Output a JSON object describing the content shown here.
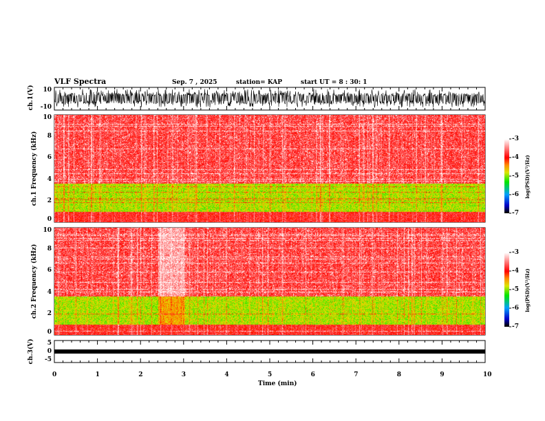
{
  "header": {
    "title": "VLF Spectra",
    "date": "Sep. 7 , 2025",
    "station": "station= KAP",
    "start": "start  UT =  8 : 30: 1"
  },
  "chart_data": [
    {
      "type": "line",
      "name": "ch1 waveform",
      "ylabel": "ch.1(V)",
      "ylim": [
        -10,
        10
      ],
      "yticks": [
        "10",
        "-10"
      ],
      "xlim": [
        0,
        10
      ]
    },
    {
      "type": "heatmap",
      "name": "ch1 spectrogram",
      "ylabel": "ch.1 Frequency (kHz)",
      "ylim": [
        0,
        10
      ],
      "yticks": [
        "0",
        "2",
        "4",
        "6",
        "8",
        "10"
      ],
      "xlim": [
        0,
        10
      ],
      "colorbar": {
        "label": "log(PSD)(V²/Hz)",
        "range": [
          -7,
          -3
        ],
        "ticks": [
          "-3",
          "-4",
          "-5",
          "-6",
          "-7"
        ]
      },
      "description_bands": [
        {
          "freq_khz": [
            4,
            10
          ],
          "level": -3.8
        },
        {
          "freq_khz": [
            1,
            3.5
          ],
          "level": -4.8
        },
        {
          "freq_khz": [
            0,
            1
          ],
          "level": -3.9
        }
      ]
    },
    {
      "type": "heatmap",
      "name": "ch2 spectrogram",
      "ylabel": "ch.2 Frequency (kHz)",
      "ylim": [
        0,
        10
      ],
      "yticks": [
        "0",
        "2",
        "4",
        "6",
        "8",
        "10"
      ],
      "xlim": [
        0,
        10
      ],
      "colorbar": {
        "label": "log(PSD)(V²/Hz)",
        "range": [
          -7,
          -3
        ],
        "ticks": [
          "-3",
          "-4",
          "-5",
          "-6",
          "-7"
        ]
      }
    },
    {
      "type": "line",
      "name": "ch3 waveform",
      "ylabel": "ch.3(V)",
      "ylim": [
        -5,
        5
      ],
      "yticks": [
        "5",
        "0",
        "-5"
      ],
      "xlim": [
        0,
        10
      ],
      "xticks": [
        "0",
        "1",
        "2",
        "3",
        "4",
        "5",
        "6",
        "7",
        "8",
        "9",
        "10"
      ],
      "xlabel": "Time (min)"
    }
  ]
}
